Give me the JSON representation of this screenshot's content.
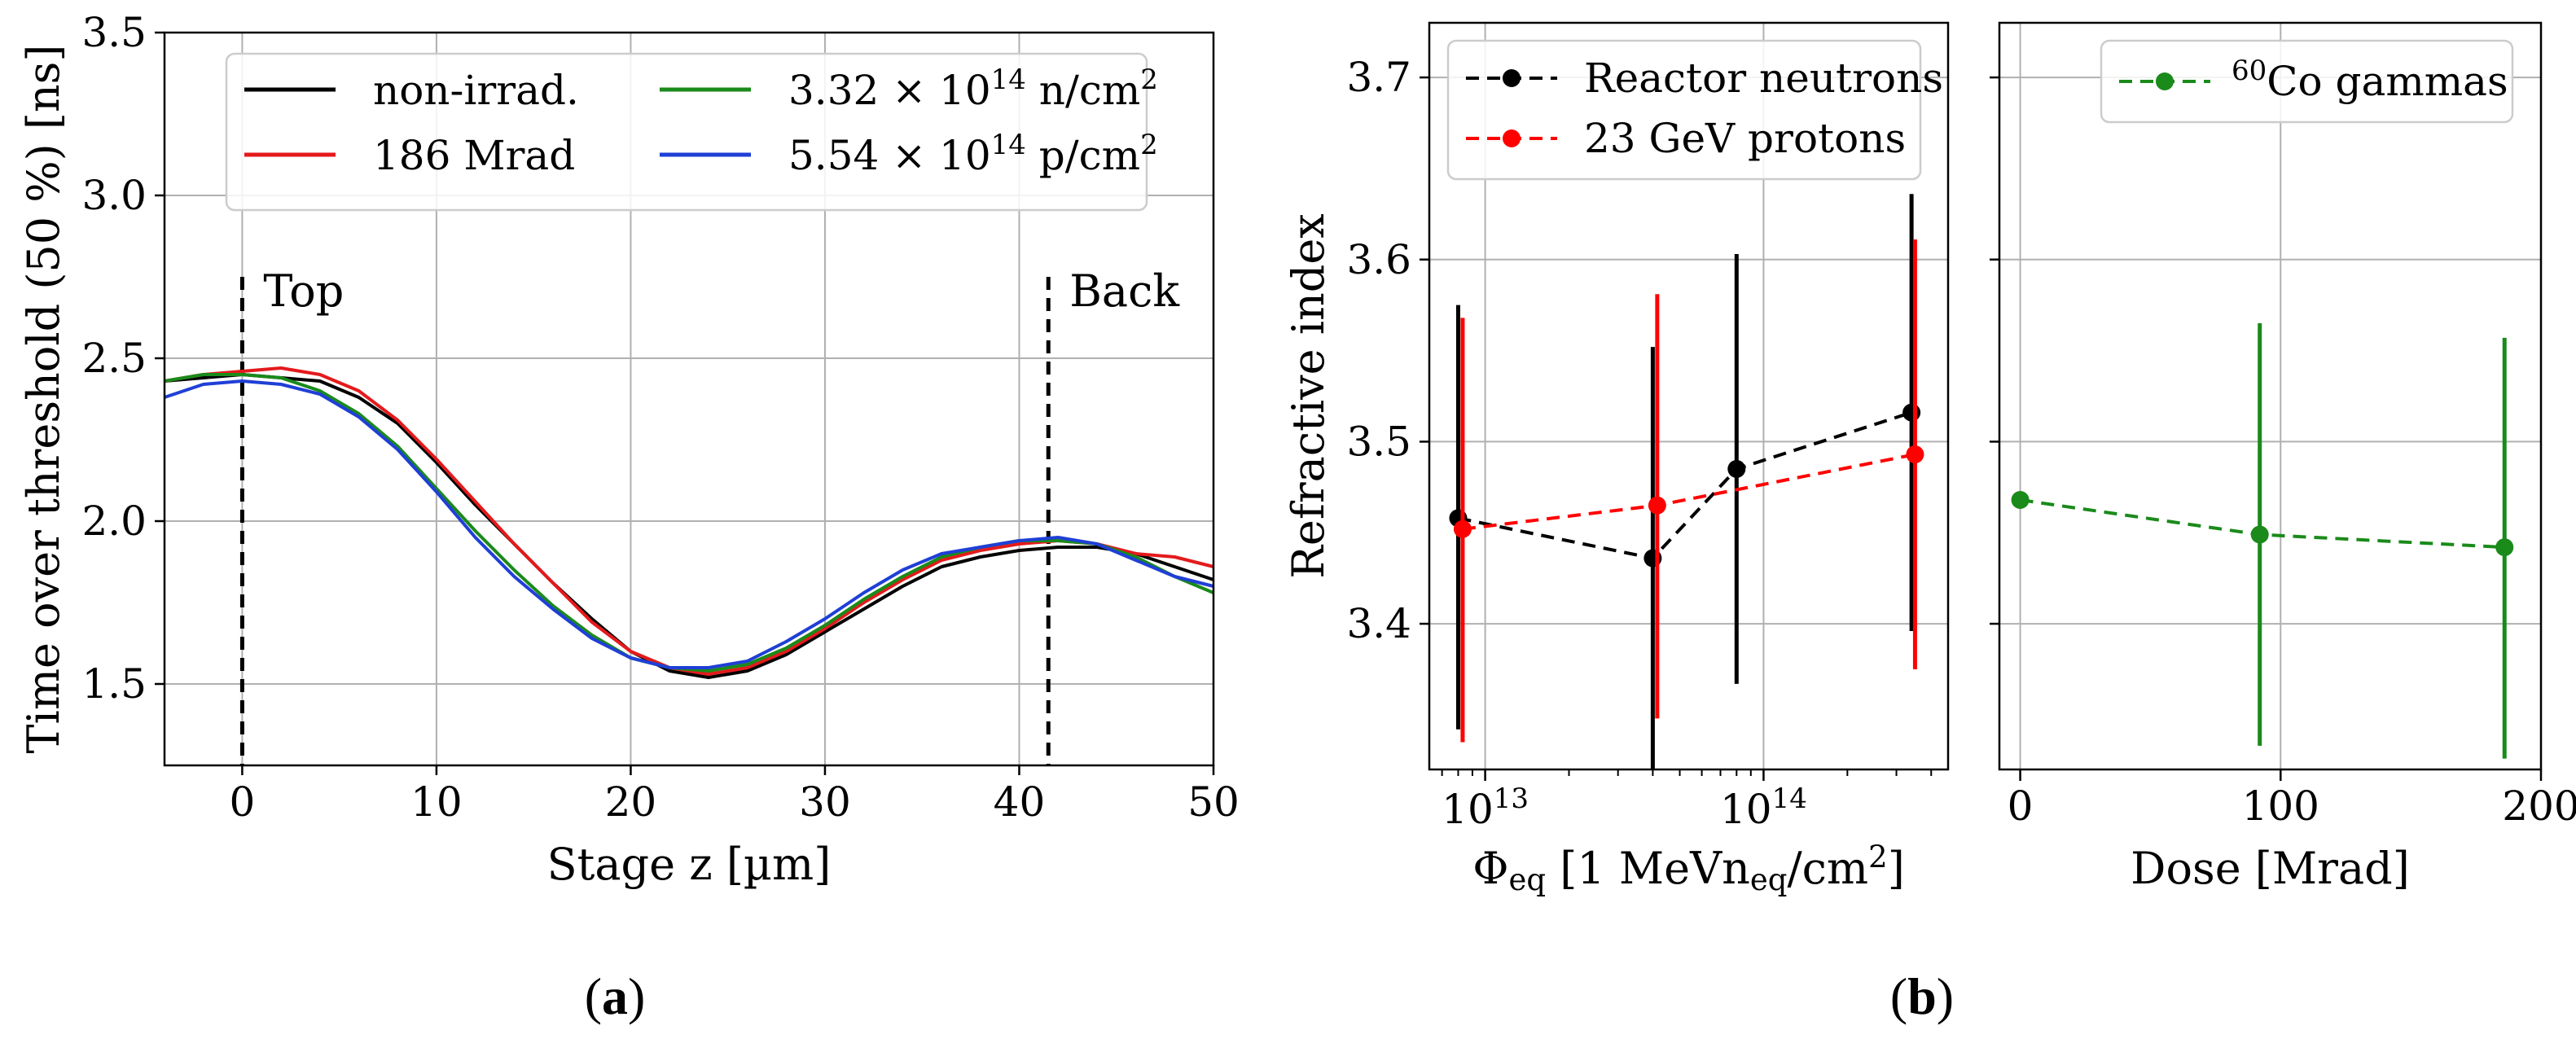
{
  "panels": {
    "a": "(a)",
    "b": "(b)"
  },
  "chart_data": [
    {
      "id": "a",
      "type": "line",
      "title": "",
      "xlabel": "Stage z [µm]",
      "ylabel": "Time over threshold (50 %) [ns]",
      "xlim": [
        -4,
        50
      ],
      "ylim": [
        1.25,
        3.5
      ],
      "xticks": [
        0,
        10,
        20,
        30,
        40,
        50
      ],
      "yticks": [
        1.5,
        2.0,
        2.5,
        3.0,
        3.5
      ],
      "xtick_labels": [
        "0",
        "10",
        "20",
        "30",
        "40",
        "50"
      ],
      "ytick_labels": [
        "1.5",
        "2.0",
        "2.5",
        "3.0",
        "3.5"
      ],
      "grid": true,
      "legend_position": "top",
      "annotations": [
        {
          "text": "Top",
          "x": 0,
          "style": "dashed-vertical"
        },
        {
          "text": "Back",
          "x": 41.5,
          "style": "dashed-vertical"
        }
      ],
      "series": [
        {
          "name": "non-irrad.",
          "color": "#000000",
          "x": [
            -4,
            -2,
            0,
            2,
            4,
            6,
            8,
            10,
            12,
            14,
            16,
            18,
            20,
            22,
            24,
            26,
            28,
            30,
            32,
            34,
            36,
            38,
            40,
            42,
            44,
            46,
            48,
            50
          ],
          "y": [
            2.43,
            2.44,
            2.45,
            2.44,
            2.43,
            2.38,
            2.3,
            2.18,
            2.05,
            1.93,
            1.81,
            1.7,
            1.6,
            1.54,
            1.52,
            1.54,
            1.59,
            1.66,
            1.73,
            1.8,
            1.86,
            1.89,
            1.91,
            1.92,
            1.92,
            1.9,
            1.86,
            1.82
          ]
        },
        {
          "name": "186 Mrad",
          "color": "#e41a1c",
          "x": [
            -4,
            -2,
            0,
            2,
            4,
            6,
            8,
            10,
            12,
            14,
            16,
            18,
            20,
            22,
            24,
            26,
            28,
            30,
            32,
            34,
            36,
            38,
            40,
            42,
            44,
            46,
            48,
            50
          ],
          "y": [
            2.43,
            2.45,
            2.46,
            2.47,
            2.45,
            2.4,
            2.31,
            2.19,
            2.06,
            1.93,
            1.81,
            1.69,
            1.6,
            1.55,
            1.53,
            1.55,
            1.6,
            1.67,
            1.75,
            1.82,
            1.88,
            1.91,
            1.93,
            1.94,
            1.93,
            1.9,
            1.89,
            1.86
          ]
        },
        {
          "name": "3.32 × 10^14 n/cm^2",
          "color": "#1a8a1a",
          "x": [
            -4,
            -2,
            0,
            2,
            4,
            6,
            8,
            10,
            12,
            14,
            16,
            18,
            20,
            22,
            24,
            26,
            28,
            30,
            32,
            34,
            36,
            38,
            40,
            42,
            44,
            46,
            48,
            50
          ],
          "y": [
            2.43,
            2.45,
            2.45,
            2.44,
            2.4,
            2.33,
            2.23,
            2.1,
            1.97,
            1.85,
            1.74,
            1.65,
            1.58,
            1.55,
            1.54,
            1.56,
            1.61,
            1.68,
            1.76,
            1.83,
            1.89,
            1.92,
            1.94,
            1.94,
            1.93,
            1.89,
            1.83,
            1.78
          ]
        },
        {
          "name": "5.54 × 10^14 p/cm^2",
          "color": "#1f3fd6",
          "x": [
            -4,
            -2,
            0,
            2,
            4,
            6,
            8,
            10,
            12,
            14,
            16,
            18,
            20,
            22,
            24,
            26,
            28,
            30,
            32,
            34,
            36,
            38,
            40,
            42,
            44,
            46,
            48,
            50
          ],
          "y": [
            2.38,
            2.42,
            2.43,
            2.42,
            2.39,
            2.32,
            2.22,
            2.09,
            1.95,
            1.83,
            1.73,
            1.64,
            1.58,
            1.55,
            1.55,
            1.57,
            1.63,
            1.7,
            1.78,
            1.85,
            1.9,
            1.92,
            1.94,
            1.95,
            1.93,
            1.88,
            1.83,
            1.8
          ]
        }
      ]
    },
    {
      "id": "b-left",
      "type": "scatter",
      "xscale": "log",
      "xlabel": "Φ_eq [1 MeVn_eq/cm^2]",
      "ylabel": "Refractive index",
      "xlim": [
        6300000000000.0,
        460000000000000.0
      ],
      "ylim": [
        3.32,
        3.73
      ],
      "xticks": [
        10000000000000.0,
        100000000000000.0
      ],
      "xtick_labels": [
        "10^13",
        "10^14"
      ],
      "yticks": [
        3.4,
        3.5,
        3.6,
        3.7
      ],
      "ytick_labels": [
        "3.4",
        "3.5",
        "3.6",
        "3.7"
      ],
      "grid": true,
      "legend_position": "top-left",
      "series": [
        {
          "name": "Reactor neutrons",
          "color": "#000000",
          "linestyle": "dashed",
          "x": [
            8000000000000.0,
            40000000000000.0,
            80000000000000.0,
            340000000000000.0
          ],
          "y": [
            3.458,
            3.436,
            3.485,
            3.516
          ],
          "err_low": [
            3.342,
            3.32,
            3.367,
            3.396
          ],
          "err_high": [
            3.575,
            3.552,
            3.603,
            3.636
          ]
        },
        {
          "name": "23 GeV protons",
          "color": "#ff0000",
          "linestyle": "dashed",
          "x": [
            8300000000000.0,
            41500000000000.0,
            350000000000000.0
          ],
          "y": [
            3.452,
            3.465,
            3.493
          ],
          "err_low": [
            3.335,
            3.348,
            3.375
          ],
          "err_high": [
            3.568,
            3.581,
            3.611
          ]
        }
      ]
    },
    {
      "id": "b-right",
      "type": "scatter",
      "xlabel": "Dose [Mrad]",
      "ylabel": "",
      "xlim": [
        -8,
        200
      ],
      "ylim": [
        3.32,
        3.73
      ],
      "xticks": [
        0,
        100,
        200
      ],
      "xtick_labels": [
        "0",
        "100",
        "200"
      ],
      "yticks": [
        3.4,
        3.5,
        3.6,
        3.7
      ],
      "grid": true,
      "legend_position": "top-right",
      "series": [
        {
          "name": "60Co gammas",
          "color": "#1a8a1a",
          "linestyle": "dashed",
          "x": [
            0,
            92,
            186
          ],
          "y": [
            3.468,
            3.449,
            3.442
          ],
          "err_low": [
            3.468,
            3.333,
            3.326
          ],
          "err_high": [
            3.468,
            3.565,
            3.557
          ]
        }
      ]
    }
  ]
}
